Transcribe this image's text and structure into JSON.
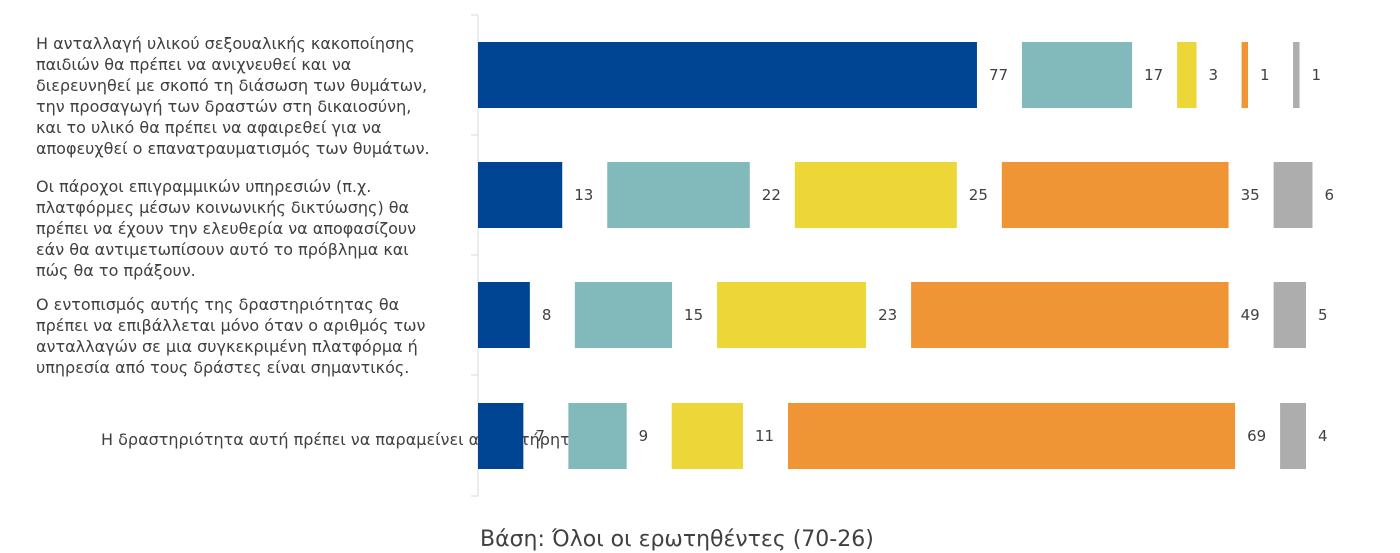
{
  "chart_data": {
    "type": "bar",
    "orientation": "horizontal",
    "stacked": true,
    "categories": [
      "Η ανταλλαγή υλικού σεξουαλικής κακοποίησης παιδιών θα πρέπει να ανιχνευθεί και να διερευνηθεί με σκοπό τη διάσωση των θυμάτων, την προσαγωγή των δραστών στη δικαιοσύνη, και το υλικό θα πρέπει να αφαιρεθεί για να αποφευχθεί ο επανατραυματισμός των θυμάτων.",
      "Οι πάροχοι επιγραμμικών υπηρεσιών (π.χ. πλατφόρμες μέσων κοινωνικής δικτύωσης) θα πρέπει να έχουν την ελευθερία να αποφασίζουν εάν θα αντιμετωπίσουν αυτό το πρόβλημα και πώς θα το πράξουν.",
      "Ο εντοπισμός αυτής της δραστηριότητας θα πρέπει να επιβάλλεται μόνο όταν ο αριθμός των ανταλλαγών σε μια συγκεκριμένη πλατφόρμα ή υπηρεσία από τους δράστες είναι σημαντικός.",
      "Η δραστηριότητα αυτή πρέπει να παραμείνει απαρατήρητη"
    ],
    "series": [
      {
        "values": [
          77,
          13,
          8,
          7
        ],
        "color": "#004494"
      },
      {
        "values": [
          17,
          22,
          15,
          9
        ],
        "color": "#82BABC"
      },
      {
        "values": [
          3,
          25,
          23,
          11
        ],
        "color": "#EDD637"
      },
      {
        "values": [
          1,
          35,
          49,
          69
        ],
        "color": "#F09536"
      },
      {
        "values": [
          1,
          6,
          5,
          4
        ],
        "color": "#ADADAD"
      }
    ],
    "xlim": [
      0,
      100
    ],
    "grid": false,
    "legend": "none"
  },
  "footer": {
    "base_note": "Βάση: Όλοι οι ερωτηθέντες (70-26)"
  }
}
